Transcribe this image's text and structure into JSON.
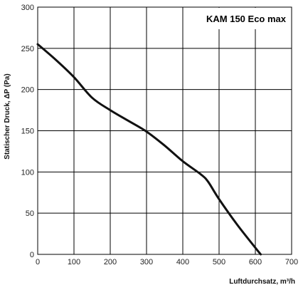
{
  "chart_data": {
    "type": "line",
    "title": "KAM 150 Eco max",
    "xlabel": "Luftdurchsatz, m³/h",
    "ylabel": "Statischer Druck, ΔP (Pa)",
    "xlim": [
      0,
      700
    ],
    "ylim": [
      0,
      300
    ],
    "xticks": [
      "0",
      "100",
      "200",
      "300",
      "400",
      "500",
      "600",
      "700"
    ],
    "yticks": [
      "0",
      "50",
      "100",
      "150",
      "200",
      "250",
      "300"
    ],
    "grid": true,
    "series": [
      {
        "x": [
          0,
          50,
          100,
          150,
          200,
          250,
          300,
          350,
          400,
          450,
          470,
          500,
          550,
          600,
          615
        ],
        "y": [
          255,
          236,
          215,
          190,
          175,
          162,
          149,
          132,
          113,
          97,
          88,
          67,
          36,
          8,
          0
        ]
      }
    ],
    "colors": {
      "line": "#111111",
      "grid": "#000000",
      "title_box": "#ffffff"
    }
  }
}
